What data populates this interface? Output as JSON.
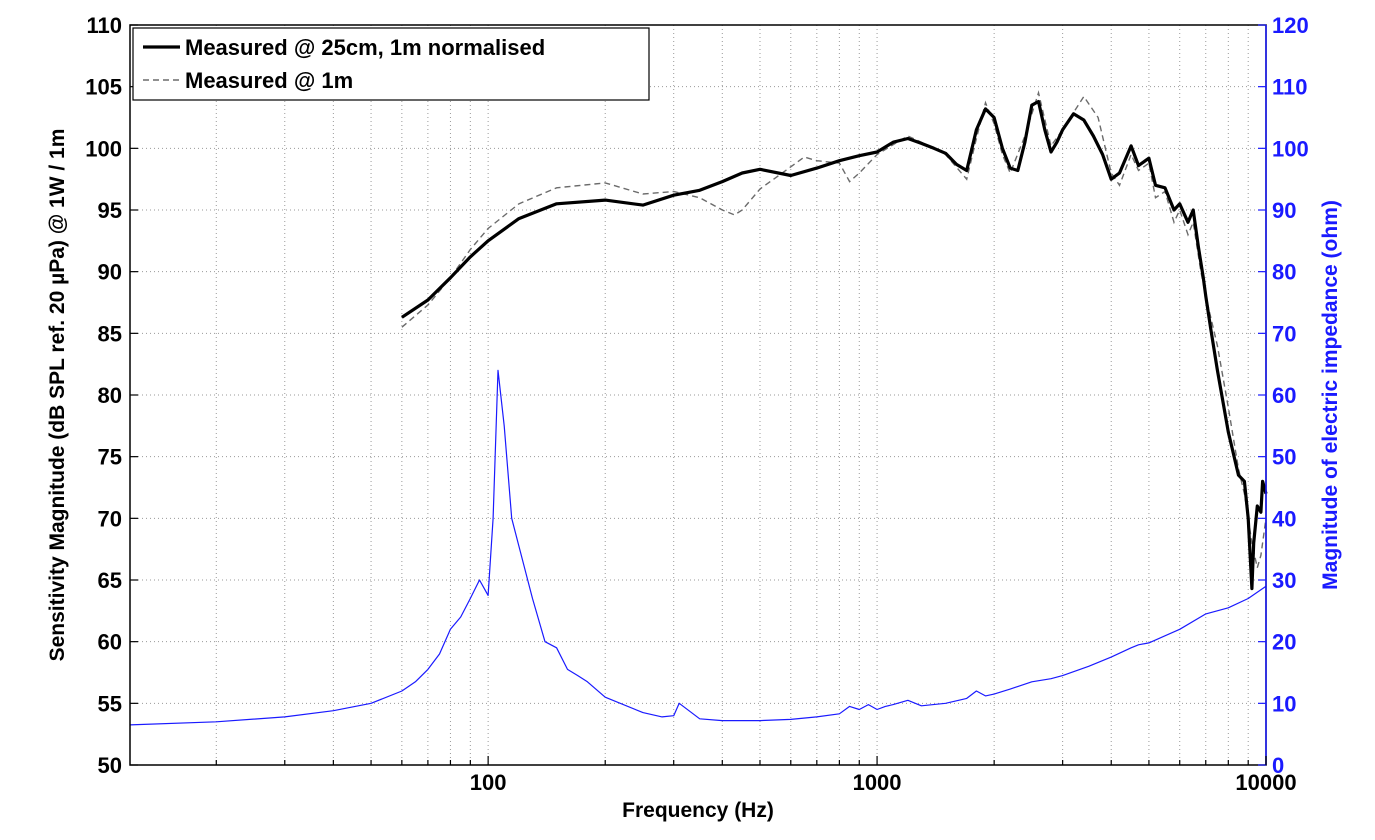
{
  "chart_data": {
    "type": "line",
    "xlabel": "Frequency (Hz)",
    "ylabel": "Sensitivity Magnitude (dB SPL ref. 20 µPa) @ 1W / 1m",
    "y2label": "Magnitude of electric impedance (ohm)",
    "x_scale": "log",
    "xlim": [
      12,
      10000
    ],
    "ylim": [
      50,
      110
    ],
    "y2lim": [
      0,
      120
    ],
    "x_ticks": [
      100,
      1000,
      10000
    ],
    "x_tick_labels": [
      "100",
      "1000",
      "10000"
    ],
    "y_ticks": [
      50,
      55,
      60,
      65,
      70,
      75,
      80,
      85,
      90,
      95,
      100,
      105,
      110
    ],
    "y_tick_labels": [
      "50",
      "55",
      "60",
      "65",
      "70",
      "75",
      "80",
      "85",
      "90",
      "95",
      "100",
      "105",
      "110"
    ],
    "y2_ticks": [
      0,
      10,
      20,
      30,
      40,
      50,
      60,
      70,
      80,
      90,
      100,
      110,
      120
    ],
    "y2_tick_labels": [
      "0",
      "10",
      "20",
      "30",
      "40",
      "50",
      "60",
      "70",
      "80",
      "90",
      "100",
      "110",
      "120"
    ],
    "grid": true,
    "legend_position": "top-left",
    "colors": {
      "measured_25cm": "#000000",
      "measured_1m": "#6b6b6b",
      "impedance": "#1a1aff",
      "y2_axis": "#1a1aff"
    },
    "series": [
      {
        "name": "Measured @ 25cm, 1m normalised",
        "axis": "left",
        "style": "solid-thick",
        "x": [
          60,
          70,
          80,
          90,
          100,
          120,
          150,
          200,
          250,
          300,
          350,
          400,
          450,
          500,
          600,
          700,
          800,
          900,
          1000,
          1100,
          1200,
          1300,
          1400,
          1500,
          1600,
          1700,
          1800,
          1900,
          2000,
          2100,
          2200,
          2300,
          2400,
          2500,
          2600,
          2700,
          2800,
          2900,
          3000,
          3200,
          3400,
          3600,
          3800,
          4000,
          4200,
          4500,
          4700,
          5000,
          5200,
          5500,
          5800,
          6000,
          6300,
          6500,
          6700,
          6900,
          7000,
          7200,
          7500,
          8000,
          8500,
          8800,
          9000,
          9200,
          9300,
          9500,
          9700,
          9800,
          10000
        ],
        "values": [
          86.3,
          87.7,
          89.5,
          91.2,
          92.5,
          94.3,
          95.5,
          95.8,
          95.4,
          96.2,
          96.6,
          97.3,
          98.0,
          98.3,
          97.8,
          98.4,
          99.0,
          99.4,
          99.7,
          100.5,
          100.8,
          100.4,
          100.0,
          99.6,
          98.7,
          98.2,
          101.5,
          103.2,
          102.5,
          100.0,
          98.4,
          98.2,
          100.5,
          103.5,
          103.8,
          101.5,
          99.7,
          100.5,
          101.5,
          102.8,
          102.3,
          101.0,
          99.5,
          97.5,
          98.0,
          100.2,
          98.6,
          99.2,
          97.0,
          96.8,
          95.0,
          95.5,
          94.0,
          95.0,
          92.0,
          89.5,
          88.0,
          85.5,
          82.0,
          77.0,
          73.5,
          73.0,
          70.0,
          64.3,
          68.0,
          71.0,
          70.5,
          73.0,
          72.0
        ]
      },
      {
        "name": "Measured @ 1m",
        "axis": "left",
        "style": "dashed",
        "x": [
          60,
          70,
          80,
          90,
          100,
          120,
          150,
          200,
          250,
          300,
          350,
          400,
          430,
          450,
          500,
          600,
          650,
          700,
          800,
          850,
          900,
          1000,
          1100,
          1200,
          1300,
          1500,
          1700,
          1800,
          1900,
          2000,
          2100,
          2200,
          2400,
          2600,
          2800,
          3000,
          3400,
          3700,
          4000,
          4200,
          4500,
          4700,
          5000,
          5200,
          5500,
          5800,
          6000,
          6300,
          6500,
          6800,
          7000,
          7500,
          8000,
          8500,
          8800,
          9000,
          9200,
          9500,
          9700,
          10000
        ],
        "values": [
          85.5,
          87.3,
          89.5,
          91.8,
          93.5,
          95.5,
          96.8,
          97.2,
          96.3,
          96.5,
          96.0,
          95.0,
          94.6,
          95.0,
          96.7,
          98.5,
          99.3,
          99.0,
          98.8,
          97.3,
          98.0,
          99.5,
          100.3,
          101.0,
          100.5,
          99.5,
          97.5,
          100.8,
          103.7,
          102.0,
          99.5,
          98.0,
          101.0,
          104.5,
          100.2,
          101.5,
          104.2,
          102.5,
          98.0,
          97.0,
          99.5,
          98.2,
          98.8,
          96.0,
          96.5,
          94.0,
          95.0,
          93.0,
          94.0,
          90.0,
          88.0,
          84.0,
          79.0,
          74.0,
          72.0,
          70.0,
          68.0,
          66.0,
          67.0,
          70.0
        ]
      },
      {
        "name": "Magnitude of electric impedance",
        "axis": "right",
        "style": "solid-thin",
        "x": [
          12,
          20,
          30,
          40,
          50,
          60,
          65,
          70,
          75,
          80,
          85,
          90,
          95,
          98,
          100,
          103,
          106,
          110,
          115,
          120,
          130,
          140,
          150,
          160,
          170,
          180,
          200,
          250,
          280,
          300,
          310,
          350,
          400,
          500,
          600,
          700,
          800,
          850,
          900,
          950,
          1000,
          1050,
          1100,
          1200,
          1300,
          1500,
          1700,
          1800,
          1900,
          2000,
          2200,
          2500,
          2800,
          3000,
          3500,
          4000,
          4500,
          4700,
          5000,
          6000,
          7000,
          8000,
          9000,
          10000
        ],
        "values": [
          6.5,
          7.0,
          7.8,
          8.8,
          10.0,
          12.0,
          13.5,
          15.5,
          18.0,
          22.0,
          24.0,
          27.0,
          30.0,
          28.5,
          27.5,
          40.0,
          64.0,
          55.0,
          40.0,
          35.5,
          27.0,
          20.0,
          19.0,
          15.5,
          14.5,
          13.5,
          11.0,
          8.5,
          7.8,
          8.0,
          10.0,
          7.5,
          7.2,
          7.2,
          7.4,
          7.8,
          8.3,
          9.5,
          9.0,
          9.8,
          9.0,
          9.5,
          9.8,
          10.5,
          9.6,
          10.0,
          10.8,
          12.0,
          11.2,
          11.5,
          12.3,
          13.5,
          14.0,
          14.5,
          16.0,
          17.5,
          19.0,
          19.5,
          19.8,
          22.0,
          24.5,
          25.5,
          27.0,
          29.0
        ]
      }
    ]
  }
}
